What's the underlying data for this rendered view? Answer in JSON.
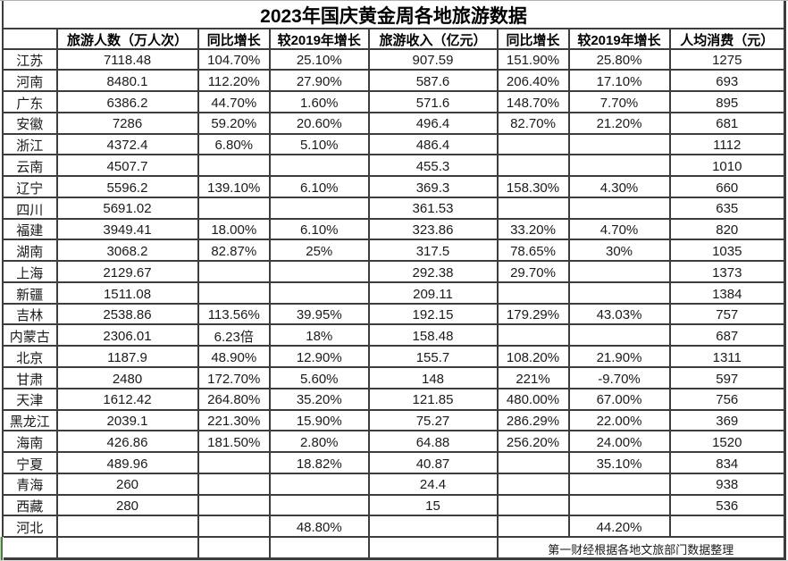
{
  "title": "2023年国庆黄金周各地旅游数据",
  "footer": {
    "source_note": "第一财经根据各地文旅部门数据整理"
  },
  "colors": {
    "grid_border": "#3d3d3d",
    "selection_green": "#4e7c3e",
    "text": "#1a1a1a",
    "background": "#ffffff"
  },
  "selection": {
    "marker": "green-left-border-on-bottom-left-cell"
  },
  "chart_data": {
    "type": "table",
    "title": "2023年国庆黄金周各地旅游数据",
    "columns": [
      "",
      "旅游人数（万人次）",
      "同比增长",
      "较2019年增长",
      "旅游收入（亿元）",
      "同比增长",
      "较2019年增长",
      "人均消费（元）"
    ],
    "rows": [
      [
        "江苏",
        "7118.48",
        "104.70%",
        "25.10%",
        "907.59",
        "151.90%",
        "25.80%",
        "1275"
      ],
      [
        "河南",
        "8480.1",
        "112.20%",
        "27.90%",
        "587.6",
        "206.40%",
        "17.10%",
        "693"
      ],
      [
        "广东",
        "6386.2",
        "44.70%",
        "1.60%",
        "571.6",
        "148.70%",
        "7.70%",
        "895"
      ],
      [
        "安徽",
        "7286",
        "59.20%",
        "20.60%",
        "496.4",
        "82.70%",
        "21.20%",
        "681"
      ],
      [
        "浙江",
        "4372.4",
        "6.80%",
        "5.10%",
        "486.4",
        "",
        "",
        "1112"
      ],
      [
        "云南",
        "4507.7",
        "",
        "",
        "455.3",
        "",
        "",
        "1010"
      ],
      [
        "辽宁",
        "5596.2",
        "139.10%",
        "6.10%",
        "369.3",
        "158.30%",
        "4.30%",
        "660"
      ],
      [
        "四川",
        "5691.02",
        "",
        "",
        "361.53",
        "",
        "",
        "635"
      ],
      [
        "福建",
        "3949.41",
        "18.00%",
        "6.10%",
        "323.86",
        "33.20%",
        "4.70%",
        "820"
      ],
      [
        "湖南",
        "3068.2",
        "82.87%",
        "25%",
        "317.5",
        "78.65%",
        "30%",
        "1035"
      ],
      [
        "上海",
        "2129.67",
        "",
        "",
        "292.38",
        "29.70%",
        "",
        "1373"
      ],
      [
        "新疆",
        "1511.08",
        "",
        "",
        "209.11",
        "",
        "",
        "1384"
      ],
      [
        "吉林",
        "2538.86",
        "113.56%",
        "39.95%",
        "192.15",
        "179.29%",
        "43.03%",
        "757"
      ],
      [
        "内蒙古",
        "2306.01",
        "6.23倍",
        "18%",
        "158.48",
        "",
        "",
        "687"
      ],
      [
        "北京",
        "1187.9",
        "48.90%",
        "12.90%",
        "155.7",
        "108.20%",
        "21.90%",
        "1311"
      ],
      [
        "甘肃",
        "2480",
        "172.70%",
        "5.60%",
        "148",
        "221%",
        "-9.70%",
        "597"
      ],
      [
        "天津",
        "1612.42",
        "264.80%",
        "35.20%",
        "121.85",
        "480.00%",
        "67.00%",
        "756"
      ],
      [
        "黑龙江",
        "2039.1",
        "221.30%",
        "15.90%",
        "75.27",
        "286.29%",
        "22.00%",
        "369"
      ],
      [
        "海南",
        "426.86",
        "181.50%",
        "2.80%",
        "64.88",
        "256.20%",
        "24.00%",
        "1520"
      ],
      [
        "宁夏",
        "489.96",
        "",
        "18.82%",
        "40.87",
        "",
        "35.10%",
        "834"
      ],
      [
        "青海",
        "260",
        "",
        "",
        "24.4",
        "",
        "",
        "938"
      ],
      [
        "西藏",
        "280",
        "",
        "",
        "15",
        "",
        "",
        "536"
      ],
      [
        "河北",
        "",
        "",
        "48.80%",
        "",
        "",
        "44.20%",
        ""
      ]
    ],
    "source_note": "第一财经根据各地文旅部门数据整理"
  }
}
